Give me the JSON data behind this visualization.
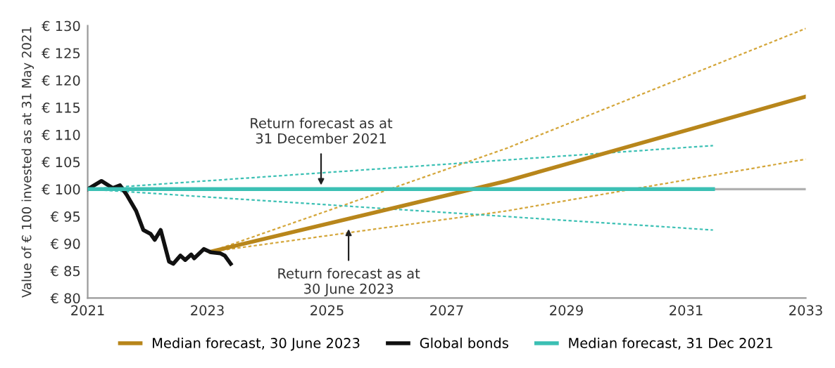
{
  "chart_data": {
    "type": "line",
    "ylabel": "Value of € 100 invested as at 31 May 2021",
    "xlim": [
      2021,
      2033
    ],
    "xticks": [
      2021,
      2023,
      2025,
      2027,
      2029,
      2031,
      2033
    ],
    "ylim": [
      80,
      130
    ],
    "yticks": [
      {
        "value": 80,
        "label": "€ 80"
      },
      {
        "value": 85,
        "label": "€ 85"
      },
      {
        "value": 90,
        "label": "€ 90"
      },
      {
        "value": 95,
        "label": "€ 95"
      },
      {
        "value": 100,
        "label": "€ 100"
      },
      {
        "value": 105,
        "label": "€ 105"
      },
      {
        "value": 110,
        "label": "€ 110"
      },
      {
        "value": 115,
        "label": "€ 115"
      },
      {
        "value": 120,
        "label": "€ 120"
      },
      {
        "value": 125,
        "label": "€ 125"
      },
      {
        "value": 130,
        "label": "€ 130"
      }
    ],
    "grid": false,
    "legend": "bottom",
    "ref_lines": [
      {
        "axis": "y",
        "value": 100,
        "color": "#b0b0b0"
      }
    ],
    "series": [
      {
        "color": "#d4a63a",
        "line_style": "dashed",
        "x": [
          2023.05,
          2028,
          2033
        ],
        "values": [
          88.5,
          107.5,
          129.5
        ]
      },
      {
        "color": "#d4a63a",
        "line_style": "dashed",
        "x": [
          2023.05,
          2028,
          2033
        ],
        "values": [
          88.5,
          96,
          105.5
        ]
      },
      {
        "name": "Median forecast, 30 June 2023",
        "color": "#b8861b",
        "line_style": "solid",
        "x": [
          2023.05,
          2028,
          2033
        ],
        "values": [
          88.5,
          101.5,
          117
        ]
      },
      {
        "name": "Global bonds",
        "color": "#111111",
        "line_style": "solid",
        "x": [
          2021.0,
          2021.23,
          2021.42,
          2021.54,
          2021.65,
          2021.81,
          2021.93,
          2022.05,
          2022.12,
          2022.22,
          2022.36,
          2022.43,
          2022.55,
          2022.63,
          2022.73,
          2022.78,
          2022.94,
          2023.06,
          2023.22,
          2023.29,
          2023.39
        ],
        "values": [
          100,
          101.5,
          100.2,
          100.7,
          99,
          96,
          92.5,
          91.8,
          90.7,
          92.5,
          86.7,
          86.3,
          87.8,
          87,
          88,
          87.3,
          89,
          88.4,
          88.2,
          87.8,
          86.3
        ]
      },
      {
        "color": "#3cc0b4",
        "line_style": "dashed",
        "x": [
          2021,
          2031.45
        ],
        "values": [
          100,
          108
        ]
      },
      {
        "color": "#3cc0b4",
        "line_style": "dashed",
        "x": [
          2021,
          2031.45
        ],
        "values": [
          100,
          92.5
        ]
      },
      {
        "name": "Median forecast, 31 Dec 2021",
        "color": "#3cc0b4",
        "line_style": "solid",
        "x": [
          2021,
          2031.45
        ],
        "values": [
          100,
          100
        ]
      }
    ],
    "annotations": [
      {
        "text": "Return forecast as at\n31 December 2021",
        "x": 2024.9,
        "y": 100
      },
      {
        "text": "Return forecast as at\n30 June 2023",
        "x": 2025.36,
        "y": 93.4
      }
    ]
  }
}
